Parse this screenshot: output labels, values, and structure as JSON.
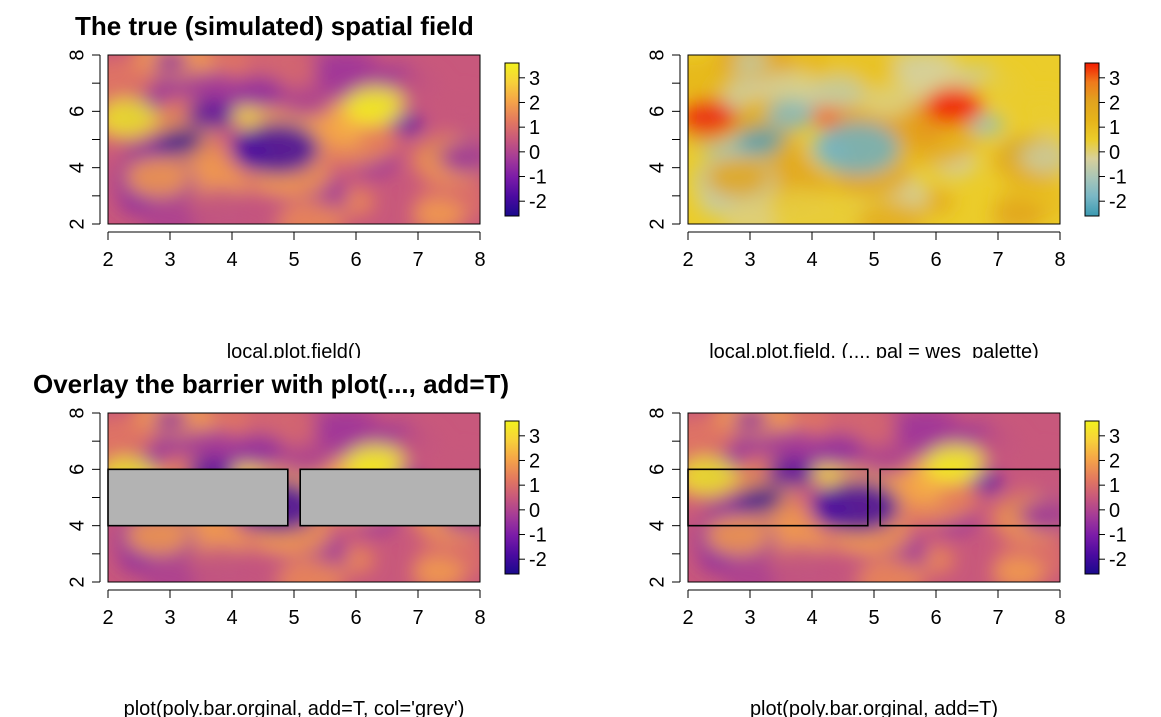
{
  "chart_data": [
    {
      "type": "heatmap",
      "title": "The true (simulated) spatial field",
      "xlabel": "local.plot.field()",
      "ylabel": "",
      "xlim": [
        2,
        8
      ],
      "ylim": [
        2,
        8
      ],
      "x_ticks": [
        "2",
        "3",
        "4",
        "5",
        "6",
        "7",
        "8"
      ],
      "y_ticks": [
        "2",
        "4",
        "6",
        "8"
      ],
      "palette": "viridis-plasma",
      "colorbar": {
        "range": [
          -2.6,
          3.6
        ],
        "ticks": [
          "3",
          "2",
          "1",
          "0",
          "-1",
          "-2"
        ]
      },
      "barrier_mode": "none"
    },
    {
      "type": "heatmap",
      "title": "",
      "xlabel": "local.plot.field. (..., pal = wes_palette)",
      "ylabel": "",
      "xlim": [
        2,
        8
      ],
      "ylim": [
        2,
        8
      ],
      "x_ticks": [
        "2",
        "3",
        "4",
        "5",
        "6",
        "7",
        "8"
      ],
      "y_ticks": [
        "2",
        "4",
        "6",
        "8"
      ],
      "palette": "wes-zissou",
      "colorbar": {
        "range": [
          -2.6,
          3.6
        ],
        "ticks": [
          "3",
          "2",
          "1",
          "0",
          "-1",
          "-2"
        ]
      },
      "barrier_mode": "none"
    },
    {
      "type": "heatmap",
      "title": "Overlay the barrier with plot(..., add=T)",
      "xlabel": "plot(poly.bar.orginal, add=T, col='grey')",
      "ylabel": "",
      "xlim": [
        2,
        8
      ],
      "ylim": [
        2,
        8
      ],
      "x_ticks": [
        "2",
        "3",
        "4",
        "5",
        "6",
        "7",
        "8"
      ],
      "y_ticks": [
        "2",
        "4",
        "6",
        "8"
      ],
      "palette": "viridis-plasma",
      "colorbar": {
        "range": [
          -2.6,
          3.6
        ],
        "ticks": [
          "3",
          "2",
          "1",
          "0",
          "-1",
          "-2"
        ]
      },
      "barrier_mode": "filled",
      "barrier_fill": "#b3b3b3",
      "barriers": [
        {
          "x": [
            2,
            4.9
          ],
          "y": [
            4,
            6
          ]
        },
        {
          "x": [
            5.1,
            8
          ],
          "y": [
            4,
            6
          ]
        }
      ]
    },
    {
      "type": "heatmap",
      "title": "",
      "xlabel": "plot(poly.bar.orginal, add=T)",
      "ylabel": "",
      "xlim": [
        2,
        8
      ],
      "ylim": [
        2,
        8
      ],
      "x_ticks": [
        "2",
        "3",
        "4",
        "5",
        "6",
        "7",
        "8"
      ],
      "y_ticks": [
        "2",
        "4",
        "6",
        "8"
      ],
      "palette": "viridis-plasma",
      "colorbar": {
        "range": [
          -2.6,
          3.6
        ],
        "ticks": [
          "3",
          "2",
          "1",
          "0",
          "-1",
          "-2"
        ]
      },
      "barrier_mode": "outline",
      "barriers": [
        {
          "x": [
            2,
            4.9
          ],
          "y": [
            4,
            6
          ]
        },
        {
          "x": [
            5.1,
            8
          ],
          "y": [
            4,
            6
          ]
        }
      ]
    }
  ]
}
